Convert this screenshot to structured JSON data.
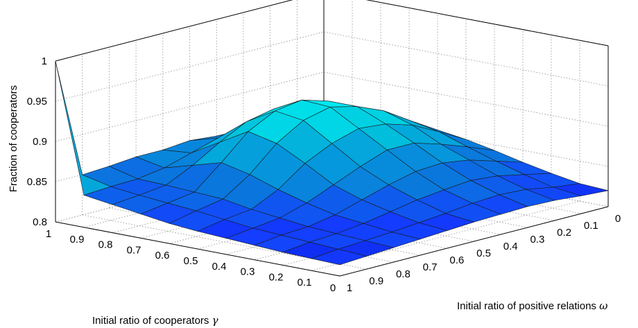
{
  "chart_data": {
    "type": "surface3d",
    "title": "",
    "zlabel": "Fraction of cooperators",
    "xlabel": "Initial ratio of positive relations",
    "xlabel_symbol": "ω",
    "ylabel": "Initial ratio of cooperators",
    "ylabel_symbol": "γ",
    "zlim": [
      0.8,
      1.0
    ],
    "z_ticks": [
      "0.8",
      "0.85",
      "0.9",
      "0.95",
      "1"
    ],
    "x_ticks": [
      "1",
      "0.9",
      "0.8",
      "0.7",
      "0.6",
      "0.5",
      "0.4",
      "0.3",
      "0.2",
      "0.1",
      "0"
    ],
    "y_ticks": [
      "1",
      "0.9",
      "0.8",
      "0.7",
      "0.6",
      "0.5",
      "0.4",
      "0.3",
      "0.2",
      "0.1",
      "0"
    ],
    "grid": true,
    "colormap": "cool-blue",
    "z_values": [
      [
        1.0,
        0.85,
        0.852,
        0.855,
        0.855,
        0.858,
        0.855,
        0.853,
        0.85,
        0.845,
        0.84
      ],
      [
        0.84,
        0.842,
        0.843,
        0.848,
        0.858,
        0.868,
        0.87,
        0.866,
        0.858,
        0.85,
        0.842
      ],
      [
        0.835,
        0.838,
        0.842,
        0.858,
        0.878,
        0.895,
        0.902,
        0.892,
        0.875,
        0.86,
        0.848
      ],
      [
        0.83,
        0.835,
        0.84,
        0.868,
        0.898,
        0.915,
        0.92,
        0.91,
        0.895,
        0.873,
        0.853
      ],
      [
        0.825,
        0.832,
        0.838,
        0.86,
        0.89,
        0.91,
        0.918,
        0.91,
        0.896,
        0.875,
        0.855
      ],
      [
        0.822,
        0.828,
        0.832,
        0.848,
        0.872,
        0.888,
        0.898,
        0.895,
        0.885,
        0.868,
        0.85
      ],
      [
        0.82,
        0.824,
        0.828,
        0.838,
        0.852,
        0.866,
        0.878,
        0.878,
        0.868,
        0.856,
        0.843
      ],
      [
        0.818,
        0.822,
        0.824,
        0.83,
        0.84,
        0.85,
        0.858,
        0.86,
        0.855,
        0.845,
        0.835
      ],
      [
        0.816,
        0.82,
        0.822,
        0.826,
        0.832,
        0.838,
        0.842,
        0.845,
        0.842,
        0.835,
        0.828
      ],
      [
        0.815,
        0.818,
        0.82,
        0.822,
        0.825,
        0.828,
        0.832,
        0.834,
        0.832,
        0.826,
        0.822
      ],
      [
        0.814,
        0.816,
        0.818,
        0.82,
        0.822,
        0.824,
        0.825,
        0.826,
        0.825,
        0.822,
        0.82
      ]
    ]
  }
}
